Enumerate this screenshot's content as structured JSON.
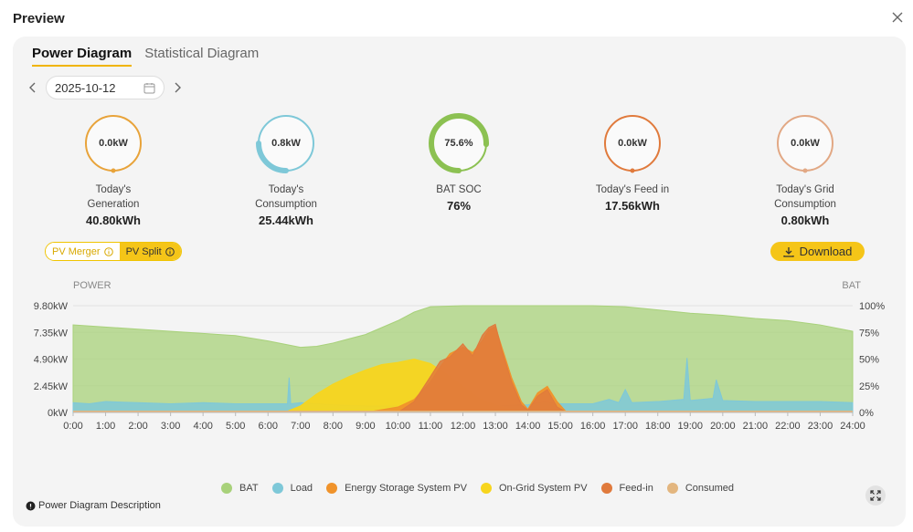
{
  "modal": {
    "title": "Preview"
  },
  "tabs": [
    {
      "label": "Power Diagram",
      "active": true
    },
    {
      "label": "Statistical Diagram",
      "active": false
    }
  ],
  "date": {
    "value": "2025-10-12"
  },
  "gauges": [
    {
      "value": "0.0kW",
      "label1": "Today's",
      "label2": "Generation",
      "amount": "40.80kWh",
      "color": "#e8a33a",
      "fill": 0
    },
    {
      "value": "0.8kW",
      "label1": "Today's",
      "label2": "Consumption",
      "amount": "25.44kWh",
      "color": "#7ec8d8",
      "fill": 0.25
    },
    {
      "value": "75.6%",
      "label1": "BAT SOC",
      "label2": "",
      "amount": "76%",
      "color": "#8cc152",
      "fill": 0.756
    },
    {
      "value": "0.0kW",
      "label1": "Today's Feed in",
      "label2": "",
      "amount": "17.56kWh",
      "color": "#e07a3c",
      "fill": 0
    },
    {
      "value": "0.0kW",
      "label1": "Today's Grid",
      "label2": "Consumption",
      "amount": "0.80kWh",
      "color": "#e2a884",
      "fill": 0
    }
  ],
  "pv_toggle": {
    "merger_label": "PV Merger",
    "split_label": "PV Split"
  },
  "download": {
    "label": "Download"
  },
  "description": {
    "label": "Power Diagram Description"
  },
  "colors": {
    "accent": "#f5c518",
    "bat": "#a8d17a",
    "load": "#7ec8d8",
    "ess_pv": "#f0932b",
    "ongrid_pv": "#f7d51d",
    "feedin": "#e07a3c",
    "consumed": "#e3b67f"
  },
  "chart_data": {
    "type": "area",
    "left_axis_label": "POWER",
    "right_axis_label": "BAT",
    "left_ticks": [
      "9.80kW",
      "7.35kW",
      "4.90kW",
      "2.45kW",
      "0kW"
    ],
    "right_ticks": [
      "100%",
      "75%",
      "50%",
      "25%",
      "0%"
    ],
    "x_ticks": [
      "0:00",
      "1:00",
      "2:00",
      "3:00",
      "4:00",
      "5:00",
      "6:00",
      "7:00",
      "8:00",
      "9:00",
      "10:00",
      "11:00",
      "12:00",
      "13:00",
      "14:00",
      "15:00",
      "16:00",
      "17:00",
      "18:00",
      "19:00",
      "20:00",
      "21:00",
      "22:00",
      "23:00",
      "24:00"
    ],
    "ylim_power": [
      0,
      9.8
    ],
    "ylim_bat": [
      0,
      100
    ],
    "series": [
      {
        "name": "BAT",
        "axis": "bat",
        "points": [
          [
            0,
            82
          ],
          [
            2,
            78
          ],
          [
            4,
            74
          ],
          [
            5,
            72
          ],
          [
            6,
            67
          ],
          [
            7,
            61
          ],
          [
            7.5,
            62
          ],
          [
            8,
            65
          ],
          [
            9,
            73
          ],
          [
            10,
            86
          ],
          [
            10.5,
            94
          ],
          [
            11,
            99
          ],
          [
            12,
            100
          ],
          [
            13,
            100
          ],
          [
            14,
            100
          ],
          [
            15,
            100
          ],
          [
            16,
            100
          ],
          [
            17,
            99
          ],
          [
            18,
            96
          ],
          [
            19,
            93
          ],
          [
            20,
            91
          ],
          [
            21,
            88
          ],
          [
            22,
            86
          ],
          [
            23,
            82
          ],
          [
            24,
            76
          ]
        ]
      },
      {
        "name": "Load",
        "axis": "power",
        "points": [
          [
            0,
            0.9
          ],
          [
            0.5,
            0.8
          ],
          [
            1,
            1.0
          ],
          [
            2,
            0.9
          ],
          [
            3,
            0.8
          ],
          [
            4,
            0.9
          ],
          [
            5,
            0.8
          ],
          [
            6,
            0.8
          ],
          [
            6.6,
            0.8
          ],
          [
            6.65,
            3.2
          ],
          [
            6.7,
            0.8
          ],
          [
            7,
            0.9
          ],
          [
            8,
            0.7
          ],
          [
            9,
            0.6
          ],
          [
            10,
            0.6
          ],
          [
            11,
            0.7
          ],
          [
            12,
            0.6
          ],
          [
            13,
            0.6
          ],
          [
            14,
            0.7
          ],
          [
            14.5,
            1.0
          ],
          [
            15,
            0.8
          ],
          [
            16,
            0.8
          ],
          [
            16.5,
            1.2
          ],
          [
            16.8,
            0.9
          ],
          [
            17,
            2.1
          ],
          [
            17.2,
            0.9
          ],
          [
            18,
            1.0
          ],
          [
            18.8,
            1.2
          ],
          [
            18.9,
            5.0
          ],
          [
            19,
            1.1
          ],
          [
            19.7,
            1.3
          ],
          [
            19.8,
            3.0
          ],
          [
            20,
            1.1
          ],
          [
            21,
            1.0
          ],
          [
            22,
            1.0
          ],
          [
            23,
            1.0
          ],
          [
            24,
            0.9
          ]
        ]
      },
      {
        "name": "On-Grid System PV",
        "axis": "power",
        "points": [
          [
            6.5,
            0
          ],
          [
            7,
            0.6
          ],
          [
            7.5,
            1.7
          ],
          [
            8,
            2.6
          ],
          [
            8.5,
            3.3
          ],
          [
            9,
            3.9
          ],
          [
            9.5,
            4.4
          ],
          [
            10,
            4.6
          ],
          [
            10.5,
            4.9
          ],
          [
            11,
            4.5
          ],
          [
            11.5,
            3.5
          ],
          [
            12,
            2.4
          ],
          [
            12.5,
            1.3
          ],
          [
            13,
            0.7
          ],
          [
            13.5,
            0.3
          ],
          [
            14,
            0.1
          ],
          [
            14.5,
            0
          ]
        ]
      },
      {
        "name": "Energy Storage System PV",
        "axis": "power",
        "points": [
          [
            9,
            0
          ],
          [
            10,
            0.5
          ],
          [
            10.5,
            1.2
          ],
          [
            11,
            2.8
          ],
          [
            11.3,
            4.2
          ],
          [
            11.6,
            5.4
          ],
          [
            12,
            6.0
          ],
          [
            12.3,
            5.5
          ],
          [
            12.6,
            6.6
          ],
          [
            12.8,
            7.6
          ],
          [
            13,
            7.9
          ],
          [
            13.2,
            6.0
          ],
          [
            13.5,
            3.2
          ],
          [
            13.8,
            1.0
          ],
          [
            14,
            0.3
          ],
          [
            14.3,
            1.8
          ],
          [
            14.6,
            2.4
          ],
          [
            14.9,
            1.0
          ],
          [
            15.2,
            0
          ]
        ]
      },
      {
        "name": "Feed-in",
        "axis": "power",
        "points": [
          [
            10,
            0
          ],
          [
            10.5,
            1.0
          ],
          [
            11,
            3.3
          ],
          [
            11.3,
            4.7
          ],
          [
            11.6,
            5.1
          ],
          [
            12,
            6.3
          ],
          [
            12.3,
            5.2
          ],
          [
            12.6,
            7.1
          ],
          [
            12.8,
            7.8
          ],
          [
            13,
            8.1
          ],
          [
            13.2,
            5.7
          ],
          [
            13.5,
            2.8
          ],
          [
            13.8,
            0.7
          ],
          [
            14,
            0.2
          ],
          [
            14.3,
            1.5
          ],
          [
            14.6,
            2.1
          ],
          [
            14.9,
            0.5
          ],
          [
            15.2,
            0
          ]
        ]
      },
      {
        "name": "Consumed",
        "axis": "power",
        "points": [
          [
            0,
            0.1
          ],
          [
            24,
            0.1
          ]
        ]
      }
    ],
    "legend": [
      {
        "name": "BAT",
        "color": "#a8d17a"
      },
      {
        "name": "Load",
        "color": "#7ec8d8"
      },
      {
        "name": "Energy Storage System PV",
        "color": "#f0932b"
      },
      {
        "name": "On-Grid System PV",
        "color": "#f7d51d"
      },
      {
        "name": "Feed-in",
        "color": "#e07a3c"
      },
      {
        "name": "Consumed",
        "color": "#e3b67f"
      }
    ]
  }
}
